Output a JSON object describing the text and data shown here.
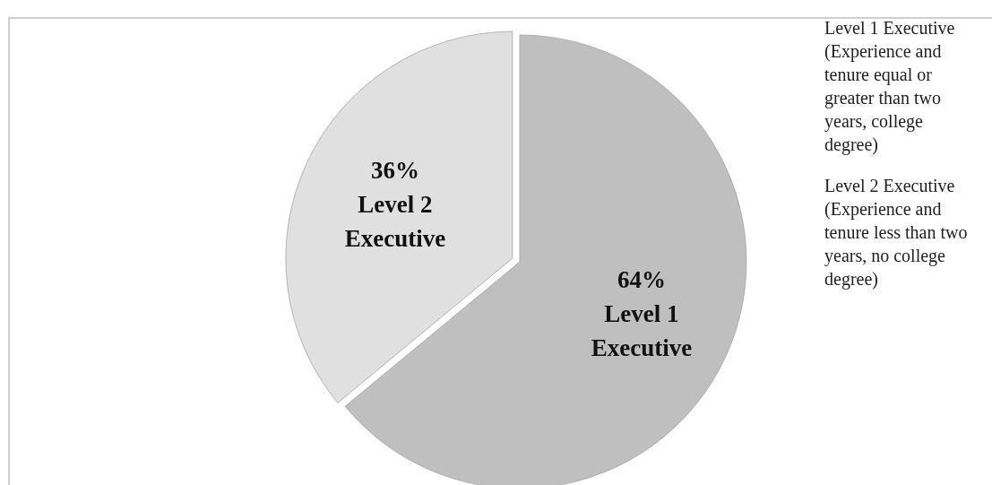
{
  "chart_data": {
    "type": "pie",
    "categories": [
      "Level 1 Executive",
      "Level 2 Executive"
    ],
    "values": [
      64,
      36
    ],
    "colors": [
      "#bfbfbf",
      "#e0e0e0"
    ],
    "value_labels": [
      "64%",
      "36%"
    ],
    "annotations": [
      "(Experience and tenure equal or greater than two years, college degree)",
      "(Experience and tenure less than two years, no college degree)"
    ]
  }
}
